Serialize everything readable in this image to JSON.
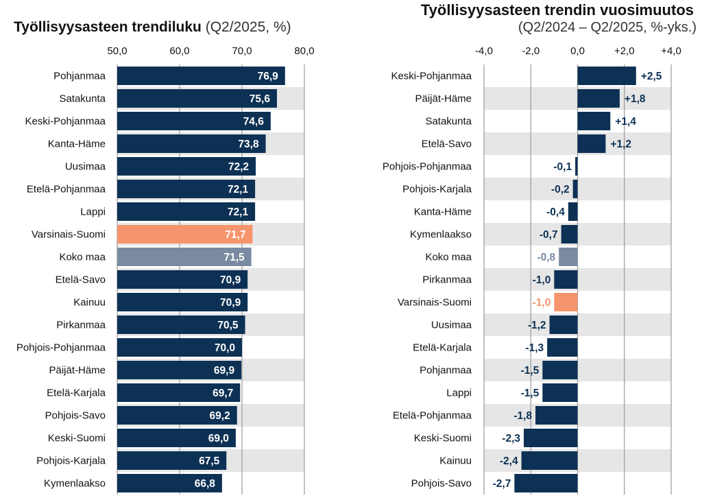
{
  "colors": {
    "bar": "#0d3154",
    "highlight": "#f6956d",
    "total": "#7a8aa0",
    "band": "#e6e6e6",
    "grid": "#9a9a9a"
  },
  "chart_data": [
    {
      "type": "bar",
      "orientation": "horizontal",
      "title": "Työllisyysasteen trendiluku",
      "subtitle": "(Q2/2025, %)",
      "xlim": [
        50,
        80
      ],
      "xticks": [
        "50,0",
        "60,0",
        "70,0",
        "80,0"
      ],
      "xtick_values": [
        50,
        60,
        70,
        80
      ],
      "categories": [
        "Pohjanmaa",
        "Satakunta",
        "Keski-Pohjanmaa",
        "Kanta-Häme",
        "Uusimaa",
        "Etelä-Pohjanmaa",
        "Lappi",
        "Varsinais-Suomi",
        "Koko maa",
        "Etelä-Savo",
        "Kainuu",
        "Pirkanmaa",
        "Pohjois-Pohjanmaa",
        "Päijät-Häme",
        "Etelä-Karjala",
        "Pohjois-Savo",
        "Keski-Suomi",
        "Pohjois-Karjala",
        "Kymenlaakso"
      ],
      "values": [
        76.9,
        75.6,
        74.6,
        73.8,
        72.2,
        72.1,
        72.1,
        71.7,
        71.5,
        70.9,
        70.9,
        70.5,
        70.0,
        69.9,
        69.7,
        69.2,
        69.0,
        67.5,
        66.8
      ],
      "labels": [
        "76,9",
        "75,6",
        "74,6",
        "73,8",
        "72,2",
        "72,1",
        "72,1",
        "71,7",
        "71,5",
        "70,9",
        "70,9",
        "70,5",
        "70,0",
        "69,9",
        "69,7",
        "69,2",
        "69,0",
        "67,5",
        "66,8"
      ],
      "highlight": "Varsinais-Suomi",
      "total": "Koko maa"
    },
    {
      "type": "bar",
      "orientation": "horizontal",
      "title": "Työllisyysasteen trendin vuosimuutos",
      "subtitle": "(Q2/2024 – Q2/2025, %-yks.)",
      "xlim": [
        -4,
        4
      ],
      "xticks": [
        "-4,0",
        "-2,0",
        "0,0",
        "+2,0",
        "+4,0"
      ],
      "xtick_values": [
        -4,
        -2,
        0,
        2,
        4
      ],
      "categories": [
        "Keski-Pohjanmaa",
        "Päijät-Häme",
        "Satakunta",
        "Etelä-Savo",
        "Pohjois-Pohjanmaa",
        "Pohjois-Karjala",
        "Kanta-Häme",
        "Kymenlaakso",
        "Koko maa",
        "Pirkanmaa",
        "Varsinais-Suomi",
        "Uusimaa",
        "Etelä-Karjala",
        "Pohjanmaa",
        "Lappi",
        "Etelä-Pohjanmaa",
        "Keski-Suomi",
        "Kainuu",
        "Pohjois-Savo"
      ],
      "values": [
        2.5,
        1.8,
        1.4,
        1.2,
        -0.1,
        -0.2,
        -0.4,
        -0.7,
        -0.8,
        -1.0,
        -1.0,
        -1.2,
        -1.3,
        -1.5,
        -1.5,
        -1.8,
        -2.3,
        -2.4,
        -2.7
      ],
      "labels": [
        "+2,5",
        "+1,8",
        "+1,4",
        "+1,2",
        "-0,1",
        "-0,2",
        "-0,4",
        "-0,7",
        "-0,8",
        "-1,0",
        "-1,0",
        "-1,2",
        "-1,3",
        "-1,5",
        "-1,5",
        "-1,8",
        "-2,3",
        "-2,4",
        "-2,7"
      ],
      "highlight": "Varsinais-Suomi",
      "total": "Koko maa"
    }
  ]
}
